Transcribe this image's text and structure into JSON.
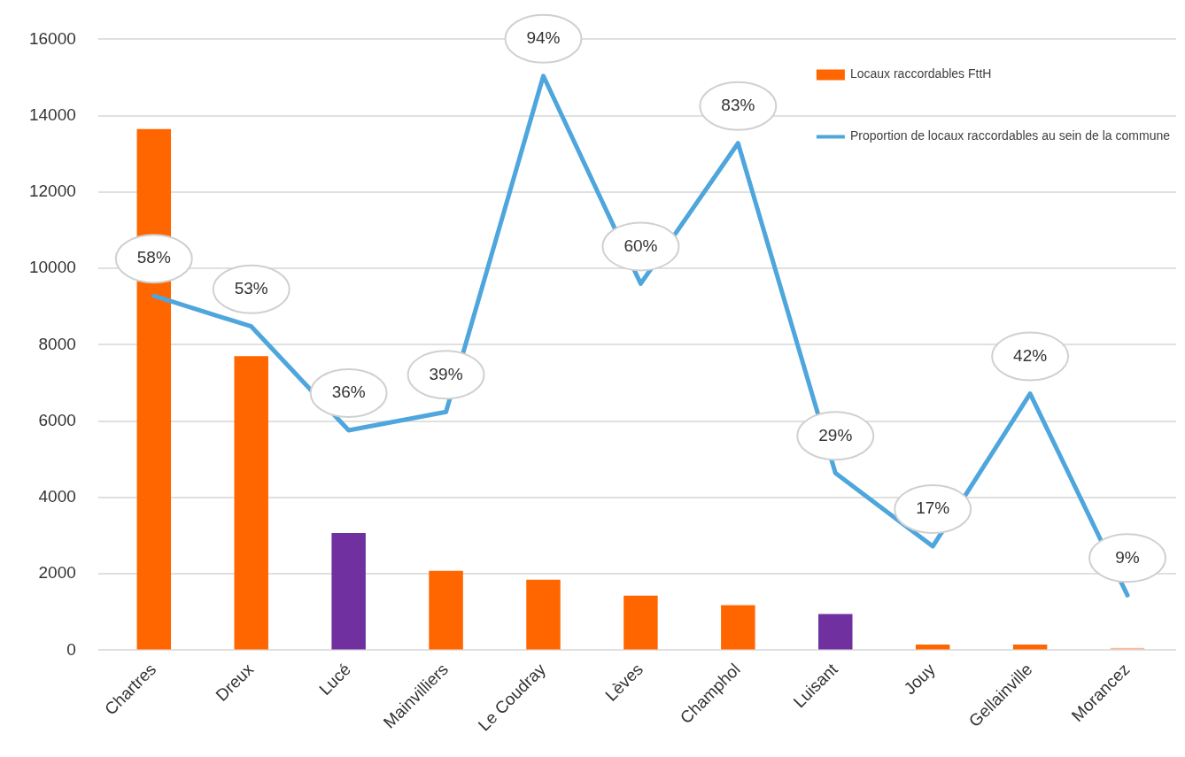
{
  "chart_data": {
    "type": "bar",
    "categories": [
      "Chartres",
      "Dreux",
      "Lucé",
      "Mainvilliers",
      "Le Coudray",
      "Lèves",
      "Champhol",
      "Luisant",
      "Jouy",
      "Gellainville",
      "Morancez"
    ],
    "series": [
      {
        "name": "Locaux raccordables FttH",
        "color": "#ff6600",
        "colors": [
          "#ff6600",
          "#ff6600",
          "#7030a0",
          "#ff6600",
          "#ff6600",
          "#ff6600",
          "#ff6600",
          "#7030a0",
          "#ff6600",
          "#ff6600",
          "#f9b89a"
        ],
        "values": [
          13650,
          7700,
          3070,
          2080,
          1850,
          1430,
          1180,
          950,
          150,
          150,
          60
        ]
      },
      {
        "name": "Proportion de locaux raccordables au sein de la commune",
        "type": "line",
        "axis": "y2",
        "color": "#4ea6dc",
        "values": [
          58,
          53,
          36,
          39,
          94,
          60,
          83,
          29,
          17,
          42,
          9
        ],
        "value_labels": [
          "58%",
          "53%",
          "36%",
          "39%",
          "94%",
          "60%",
          "83%",
          "29%",
          "17%",
          "42%",
          "9%"
        ]
      }
    ],
    "ylim": [
      0,
      16000
    ],
    "yticks": [
      0,
      2000,
      4000,
      6000,
      8000,
      10000,
      12000,
      14000,
      16000
    ],
    "y2lim": [
      0,
      100
    ],
    "grid": "y",
    "legend": "top right",
    "marker": "none",
    "line_style": "solid"
  }
}
